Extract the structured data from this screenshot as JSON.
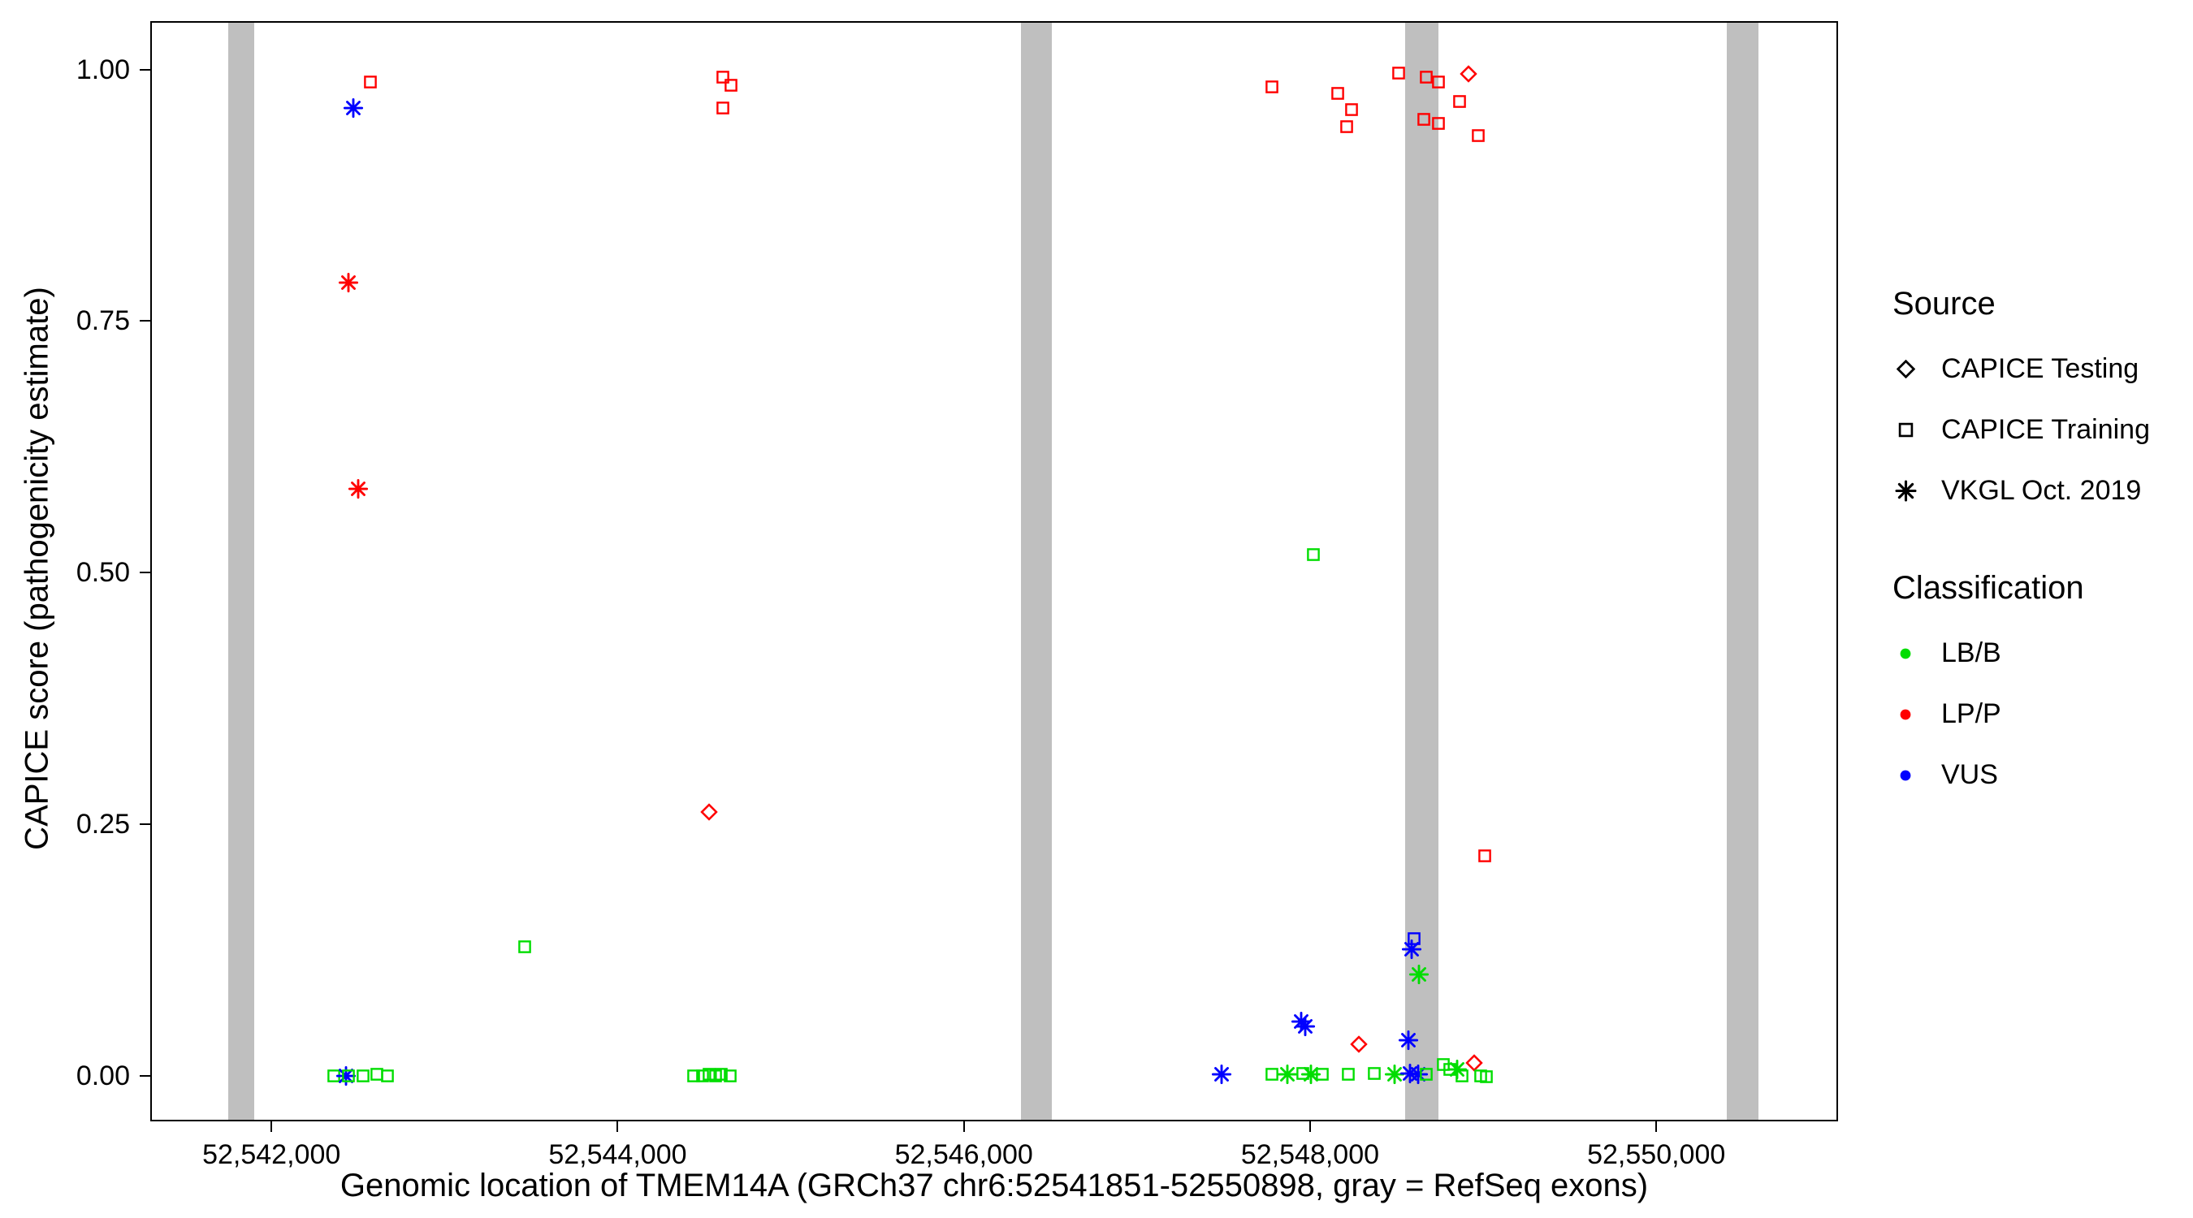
{
  "figure": {
    "background": "#ffffff",
    "panel_border": "#000000"
  },
  "chart_data": {
    "type": "scatter",
    "title": "",
    "xlabel": "Genomic location of TMEM14A (GRCh37 chr6:52541851-52550898, gray = RefSeq exons)",
    "ylabel": "CAPICE score (pathogenicity estimate)",
    "grid": false,
    "legend_position": "right",
    "x_domain": [
      52541300,
      52551050
    ],
    "y_domain": [
      -0.045,
      1.048
    ],
    "x_ticks": [
      {
        "value": 52542000,
        "label": "52,542,000"
      },
      {
        "value": 52544000,
        "label": "52,544,000"
      },
      {
        "value": 52546000,
        "label": "52,546,000"
      },
      {
        "value": 52548000,
        "label": "52,548,000"
      },
      {
        "value": 52550000,
        "label": "52,550,000"
      }
    ],
    "y_ticks": [
      {
        "value": 0.0,
        "label": "0.00"
      },
      {
        "value": 0.25,
        "label": "0.25"
      },
      {
        "value": 0.5,
        "label": "0.50"
      },
      {
        "value": 0.75,
        "label": "0.75"
      },
      {
        "value": 1.0,
        "label": "1.00"
      }
    ],
    "exon_color": "#bfbfbf",
    "exons": [
      [
        52541740,
        52541890
      ],
      [
        52546320,
        52546500
      ],
      [
        52548540,
        52548730
      ],
      [
        52550400,
        52550580
      ]
    ],
    "colors": {
      "LB/B": "#00dd00",
      "LP/P": "#ff0000",
      "VUS": "#0000ff"
    },
    "shapes": {
      "CAPICE Testing": "diamond",
      "CAPICE Training": "square",
      "VKGL Oct. 2019": "asterisk"
    },
    "points": [
      {
        "x": 52542465,
        "y": 0.963,
        "source": "VKGL Oct. 2019",
        "class": "VUS"
      },
      {
        "x": 52542560,
        "y": 0.989,
        "source": "CAPICE Training",
        "class": "LP/P"
      },
      {
        "x": 52542435,
        "y": 0.79,
        "source": "VKGL Oct. 2019",
        "class": "LP/P"
      },
      {
        "x": 52542490,
        "y": 0.585,
        "source": "VKGL Oct. 2019",
        "class": "LP/P"
      },
      {
        "x": 52543455,
        "y": 0.13,
        "source": "CAPICE Training",
        "class": "LB/B"
      },
      {
        "x": 52542350,
        "y": 0.002,
        "source": "CAPICE Training",
        "class": "LB/B"
      },
      {
        "x": 52542420,
        "y": 0.002,
        "source": "VKGL Oct. 2019",
        "class": "VUS"
      },
      {
        "x": 52542435,
        "y": 0.002,
        "source": "CAPICE Training",
        "class": "LB/B"
      },
      {
        "x": 52542520,
        "y": 0.002,
        "source": "CAPICE Training",
        "class": "LB/B"
      },
      {
        "x": 52542600,
        "y": 0.003,
        "source": "CAPICE Training",
        "class": "LB/B"
      },
      {
        "x": 52542660,
        "y": 0.002,
        "source": "CAPICE Training",
        "class": "LB/B"
      },
      {
        "x": 52544600,
        "y": 0.994,
        "source": "CAPICE Training",
        "class": "LP/P"
      },
      {
        "x": 52544645,
        "y": 0.986,
        "source": "CAPICE Training",
        "class": "LP/P"
      },
      {
        "x": 52544600,
        "y": 0.963,
        "source": "CAPICE Training",
        "class": "LP/P"
      },
      {
        "x": 52544520,
        "y": 0.264,
        "source": "CAPICE Testing",
        "class": "LP/P"
      },
      {
        "x": 52544430,
        "y": 0.002,
        "source": "CAPICE Training",
        "class": "LB/B"
      },
      {
        "x": 52544480,
        "y": 0.002,
        "source": "CAPICE Training",
        "class": "LB/B"
      },
      {
        "x": 52544520,
        "y": 0.003,
        "source": "CAPICE Training",
        "class": "LB/B"
      },
      {
        "x": 52544555,
        "y": 0.002,
        "source": "CAPICE Training",
        "class": "LB/B"
      },
      {
        "x": 52544590,
        "y": 0.003,
        "source": "CAPICE Training",
        "class": "LB/B"
      },
      {
        "x": 52544640,
        "y": 0.002,
        "source": "CAPICE Training",
        "class": "LB/B"
      },
      {
        "x": 52547770,
        "y": 0.984,
        "source": "CAPICE Training",
        "class": "LP/P"
      },
      {
        "x": 52548150,
        "y": 0.978,
        "source": "CAPICE Training",
        "class": "LP/P"
      },
      {
        "x": 52548230,
        "y": 0.962,
        "source": "CAPICE Training",
        "class": "LP/P"
      },
      {
        "x": 52548200,
        "y": 0.945,
        "source": "CAPICE Training",
        "class": "LP/P"
      },
      {
        "x": 52548500,
        "y": 0.998,
        "source": "CAPICE Training",
        "class": "LP/P"
      },
      {
        "x": 52548660,
        "y": 0.994,
        "source": "CAPICE Training",
        "class": "LP/P"
      },
      {
        "x": 52548730,
        "y": 0.989,
        "source": "CAPICE Training",
        "class": "LP/P"
      },
      {
        "x": 52548650,
        "y": 0.952,
        "source": "CAPICE Training",
        "class": "LP/P"
      },
      {
        "x": 52548730,
        "y": 0.948,
        "source": "CAPICE Training",
        "class": "LP/P"
      },
      {
        "x": 52548855,
        "y": 0.97,
        "source": "CAPICE Training",
        "class": "LP/P"
      },
      {
        "x": 52548960,
        "y": 0.936,
        "source": "CAPICE Training",
        "class": "LP/P"
      },
      {
        "x": 52548905,
        "y": 0.997,
        "source": "CAPICE Testing",
        "class": "LP/P"
      },
      {
        "x": 52548010,
        "y": 0.52,
        "source": "CAPICE Training",
        "class": "LB/B"
      },
      {
        "x": 52549000,
        "y": 0.22,
        "source": "CAPICE Training",
        "class": "LP/P"
      },
      {
        "x": 52548590,
        "y": 0.138,
        "source": "CAPICE Training",
        "class": "VUS"
      },
      {
        "x": 52548575,
        "y": 0.128,
        "source": "VKGL Oct. 2019",
        "class": "VUS"
      },
      {
        "x": 52548620,
        "y": 0.103,
        "source": "VKGL Oct. 2019",
        "class": "LB/B"
      },
      {
        "x": 52547940,
        "y": 0.056,
        "source": "VKGL Oct. 2019",
        "class": "VUS"
      },
      {
        "x": 52547965,
        "y": 0.051,
        "source": "VKGL Oct. 2019",
        "class": "VUS"
      },
      {
        "x": 52548270,
        "y": 0.033,
        "source": "CAPICE Testing",
        "class": "LP/P"
      },
      {
        "x": 52548560,
        "y": 0.037,
        "source": "VKGL Oct. 2019",
        "class": "VUS"
      },
      {
        "x": 52547480,
        "y": 0.003,
        "source": "VKGL Oct. 2019",
        "class": "VUS"
      },
      {
        "x": 52547770,
        "y": 0.003,
        "source": "CAPICE Training",
        "class": "LB/B"
      },
      {
        "x": 52547860,
        "y": 0.003,
        "source": "VKGL Oct. 2019",
        "class": "LB/B"
      },
      {
        "x": 52547950,
        "y": 0.004,
        "source": "CAPICE Training",
        "class": "LB/B"
      },
      {
        "x": 52547995,
        "y": 0.003,
        "source": "VKGL Oct. 2019",
        "class": "LB/B"
      },
      {
        "x": 52548060,
        "y": 0.003,
        "source": "CAPICE Training",
        "class": "LB/B"
      },
      {
        "x": 52548210,
        "y": 0.003,
        "source": "CAPICE Training",
        "class": "LB/B"
      },
      {
        "x": 52548360,
        "y": 0.004,
        "source": "CAPICE Training",
        "class": "LB/B"
      },
      {
        "x": 52548480,
        "y": 0.003,
        "source": "VKGL Oct. 2019",
        "class": "LB/B"
      },
      {
        "x": 52548570,
        "y": 0.004,
        "source": "VKGL Oct. 2019",
        "class": "VUS"
      },
      {
        "x": 52548615,
        "y": 0.003,
        "source": "VKGL Oct. 2019",
        "class": "VUS"
      },
      {
        "x": 52548660,
        "y": 0.003,
        "source": "CAPICE Training",
        "class": "LB/B"
      },
      {
        "x": 52548760,
        "y": 0.013,
        "source": "CAPICE Training",
        "class": "LB/B"
      },
      {
        "x": 52548800,
        "y": 0.008,
        "source": "CAPICE Training",
        "class": "LB/B"
      },
      {
        "x": 52548840,
        "y": 0.008,
        "source": "VKGL Oct. 2019",
        "class": "LB/B"
      },
      {
        "x": 52548870,
        "y": 0.002,
        "source": "CAPICE Training",
        "class": "LB/B"
      },
      {
        "x": 52548940,
        "y": 0.015,
        "source": "CAPICE Testing",
        "class": "LP/P"
      },
      {
        "x": 52548975,
        "y": 0.002,
        "source": "CAPICE Training",
        "class": "LB/B"
      },
      {
        "x": 52549010,
        "y": 0.001,
        "source": "CAPICE Training",
        "class": "LB/B"
      }
    ]
  },
  "legend": {
    "source_title": "Source",
    "source_items": [
      {
        "label": "CAPICE Testing",
        "shape": "diamond"
      },
      {
        "label": "CAPICE Training",
        "shape": "square"
      },
      {
        "label": "VKGL Oct. 2019",
        "shape": "asterisk"
      }
    ],
    "class_title": "Classification",
    "class_items": [
      {
        "label": "LB/B",
        "color": "#00dd00"
      },
      {
        "label": "LP/P",
        "color": "#ff0000"
      },
      {
        "label": "VUS",
        "color": "#0000ff"
      }
    ]
  }
}
